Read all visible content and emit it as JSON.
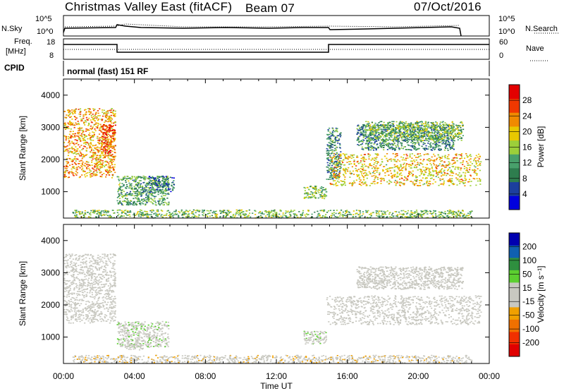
{
  "header": {
    "title": "Christmas Valley East (fitACF)",
    "beam": "Beam 07",
    "date": "07/Oct/2016"
  },
  "noise_panel": {
    "left_label": "N.Sky",
    "right_label": "N.Search",
    "left_ticks": [
      "10^5",
      "10^0"
    ],
    "right_ticks": [
      "10^5",
      "10^0"
    ]
  },
  "freq_panel": {
    "left_label_1": "Freq.",
    "left_label_2": "[MHz]",
    "right_label": "Nave",
    "left_ticks": [
      "18",
      "8"
    ],
    "right_ticks": [
      "60",
      "0"
    ]
  },
  "cpid": {
    "label": "CPID",
    "value": "normal (fast) 151 RF"
  },
  "colors": {
    "power_scale": [
      "#0000dd",
      "#1c3f9e",
      "#2e7d4e",
      "#48a06b",
      "#9ccf3a",
      "#e8c800",
      "#f08a00",
      "#f03800",
      "#e30000"
    ],
    "velocity_scale": [
      "#e00000",
      "#f03000",
      "#f07000",
      "#f0a000",
      "#c8c8c0",
      "#c8c8c0",
      "#5ccf30",
      "#2f8f3f",
      "#1060b0",
      "#0000b0"
    ]
  },
  "x_axis": {
    "label": "Time UT",
    "ticks": [
      "00:00",
      "04:00",
      "08:00",
      "12:00",
      "16:00",
      "20:00",
      "00:00"
    ]
  },
  "chart_data": [
    {
      "type": "heatmap",
      "panel": "power",
      "ylabel": "Slant Range [km]",
      "yticks": [
        "4000",
        "3000",
        "2000",
        "1000"
      ],
      "ylim": [
        180,
        4500
      ],
      "xlim": [
        0,
        24
      ],
      "colorbar_label": "Power [dB]",
      "colorbar_ticks": [
        "28",
        "24",
        "20",
        "16",
        "12",
        "8",
        "4"
      ],
      "colorbar_range": [
        0,
        32
      ],
      "scatter_regions": [
        {
          "t0": 0.0,
          "t1": 2.9,
          "r0": 1450,
          "r1": 3600,
          "level": 22
        },
        {
          "t0": 2.1,
          "t1": 2.9,
          "r0": 2200,
          "r1": 3100,
          "level": 26
        },
        {
          "t0": 3.0,
          "t1": 5.9,
          "r0": 600,
          "r1": 1500,
          "level": 12
        },
        {
          "t0": 4.8,
          "t1": 6.2,
          "r0": 1000,
          "r1": 1500,
          "level": 8
        },
        {
          "t0": 13.5,
          "t1": 14.8,
          "r0": 800,
          "r1": 1200,
          "level": 14
        },
        {
          "t0": 14.8,
          "t1": 15.6,
          "r0": 1400,
          "r1": 3000,
          "level": 10
        },
        {
          "t0": 15.0,
          "t1": 23.5,
          "r0": 1200,
          "r1": 2200,
          "level": 20
        },
        {
          "t0": 16.5,
          "t1": 22.0,
          "r0": 2300,
          "r1": 3100,
          "level": 10
        },
        {
          "t0": 17.0,
          "t1": 22.5,
          "r0": 2600,
          "r1": 3200,
          "level": 14
        },
        {
          "t0": 0.5,
          "t1": 23.0,
          "r0": 200,
          "r1": 450,
          "level": 14
        }
      ]
    },
    {
      "type": "heatmap",
      "panel": "velocity",
      "ylabel": "Slant Range [km]",
      "yticks": [
        "4000",
        "3000",
        "2000",
        "1000"
      ],
      "ylim": [
        180,
        4500
      ],
      "xlim": [
        0,
        24
      ],
      "colorbar_label": "Velocity [m s⁻¹]",
      "colorbar_ticks": [
        "200",
        "100",
        "50",
        "15",
        "-15",
        "-50",
        "-100",
        "-200"
      ],
      "colorbar_range": [
        -250,
        250
      ],
      "scatter_regions": [
        {
          "t0": 0.0,
          "t1": 2.9,
          "r0": 1450,
          "r1": 3600,
          "level": 0
        },
        {
          "t0": 3.0,
          "t1": 5.9,
          "r0": 700,
          "r1": 1500,
          "level": 30
        },
        {
          "t0": 3.5,
          "t1": 4.5,
          "r0": 600,
          "r1": 800,
          "level": 0
        },
        {
          "t0": 13.5,
          "t1": 14.8,
          "r0": 800,
          "r1": 1200,
          "level": 30
        },
        {
          "t0": 14.8,
          "t1": 23.5,
          "r0": 1400,
          "r1": 2300,
          "level": 0
        },
        {
          "t0": 16.5,
          "t1": 22.5,
          "r0": 2500,
          "r1": 3200,
          "level": 0
        },
        {
          "t0": 0.5,
          "t1": 23.0,
          "r0": 200,
          "r1": 450,
          "level": -30
        }
      ]
    }
  ]
}
